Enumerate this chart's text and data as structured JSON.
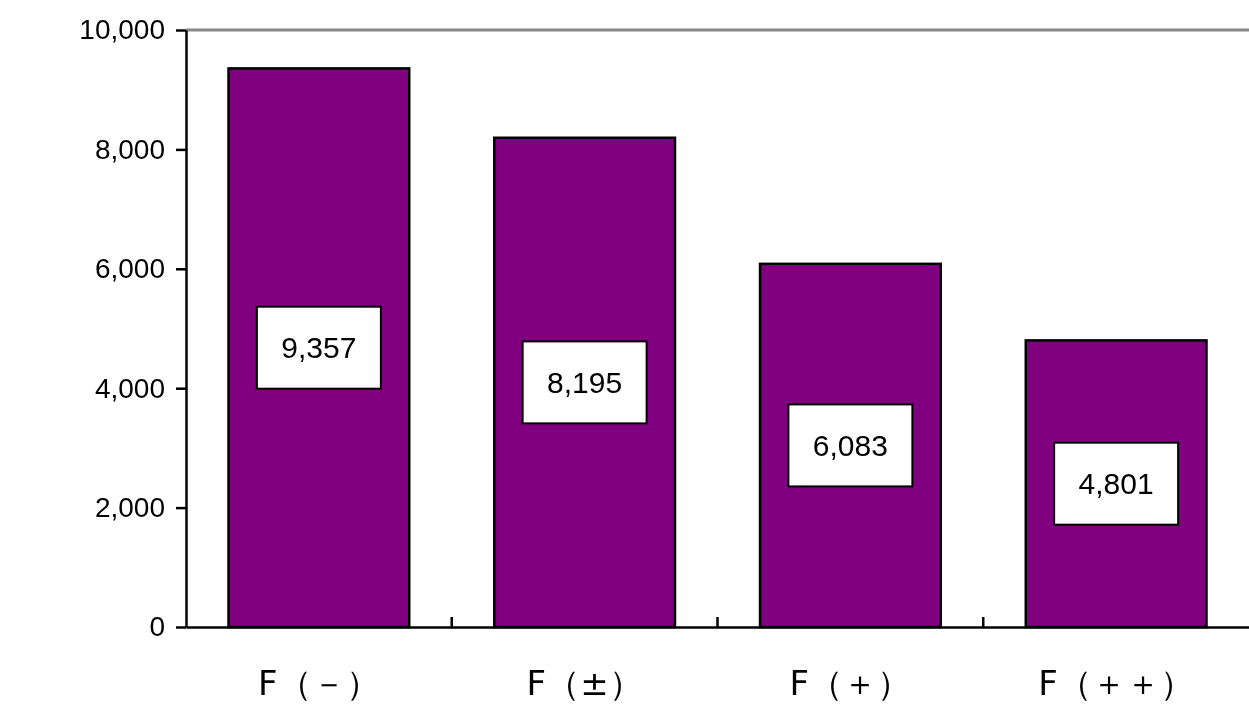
{
  "chart_data": {
    "type": "bar",
    "categories": [
      "F（－）",
      "F（±）",
      "F（＋）",
      "F（＋＋）"
    ],
    "values": [
      9357,
      8195,
      6083,
      4801
    ],
    "value_labels": [
      "9,357",
      "8,195",
      "6,083",
      "4,801"
    ],
    "color": "#800080",
    "ylim": [
      0,
      10000
    ],
    "yticks": [
      {
        "value": 0,
        "label": "0"
      },
      {
        "value": 2000,
        "label": "2,000"
      },
      {
        "value": 4000,
        "label": "4,000"
      },
      {
        "value": 6000,
        "label": "6,000"
      },
      {
        "value": 8000,
        "label": "8,000"
      },
      {
        "value": 10000,
        "label": "10,000"
      }
    ],
    "grid": false
  }
}
